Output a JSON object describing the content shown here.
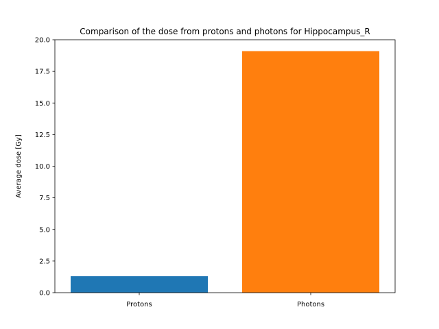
{
  "chart_data": {
    "type": "bar",
    "title": "Comparison of the dose from protons and photons for Hippocampus_R",
    "xlabel": "",
    "ylabel": "Average dose [Gy]",
    "categories": [
      "Protons",
      "Photons"
    ],
    "values": [
      1.3,
      19.1
    ],
    "colors": [
      "#1f77b4",
      "#ff7f0e"
    ],
    "ylim": [
      0,
      20
    ],
    "yticks": [
      "0.0",
      "2.5",
      "5.0",
      "7.5",
      "10.0",
      "12.5",
      "15.0",
      "17.5",
      "20.0"
    ],
    "grid": false,
    "legend": "none"
  }
}
